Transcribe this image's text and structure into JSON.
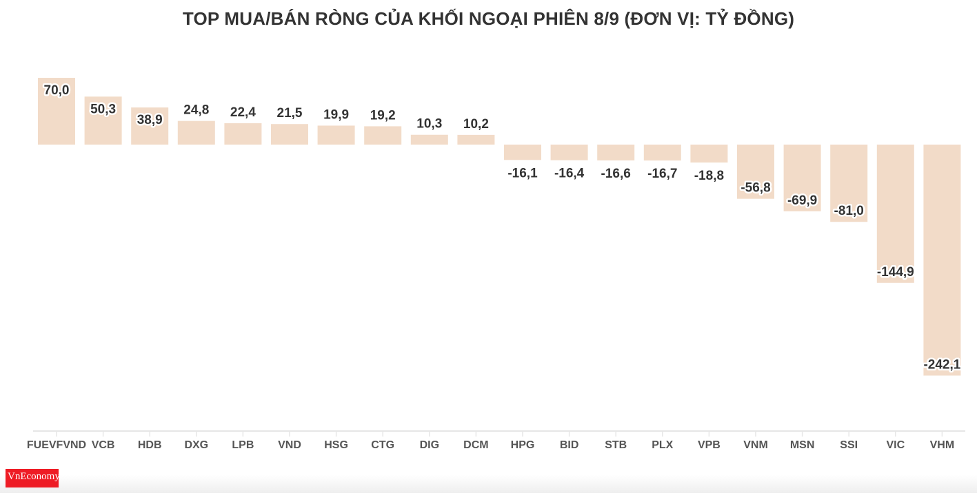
{
  "title": "TOP MUA/BÁN RÒNG CỦA KHỐI NGOẠI PHIÊN 8/9 (ĐƠN VỊ: TỶ ĐỒNG)",
  "logo": {
    "text": "VnEconomy"
  },
  "colors": {
    "bar": "#f2dbc8",
    "label": "#333333",
    "axis": "#e6e6e6"
  },
  "chart_data": {
    "type": "bar",
    "title": "TOP MUA/BÁN RÒNG CỦA KHỐI NGOẠI PHIÊN 8/9 (ĐƠN VỊ: TỶ ĐỒNG)",
    "categories": [
      "FUEVFVND",
      "VCB",
      "HDB",
      "DXG",
      "LPB",
      "VND",
      "HSG",
      "CTG",
      "DIG",
      "DCM",
      "HPG",
      "BID",
      "STB",
      "PLX",
      "VPB",
      "VNM",
      "MSN",
      "SSI",
      "VIC",
      "VHM"
    ],
    "values": [
      70.0,
      50.3,
      38.9,
      24.8,
      22.4,
      21.5,
      19.9,
      19.2,
      10.3,
      10.2,
      -16.1,
      -16.4,
      -16.6,
      -16.7,
      -18.8,
      -56.8,
      -69.9,
      -81.0,
      -144.9,
      -242.1
    ],
    "labels": [
      "70,0",
      "50,3",
      "38,9",
      "24,8",
      "22,4",
      "21,5",
      "19,9",
      "19,2",
      "10,3",
      "10,2",
      "-16,1",
      "-16,4",
      "-16,6",
      "-16,7",
      "-18,8",
      "-56,8",
      "-69,9",
      "-81,0",
      "-144,9",
      "-242,1"
    ],
    "xlabel": "",
    "ylabel": "",
    "grid": false,
    "legend": "none"
  }
}
